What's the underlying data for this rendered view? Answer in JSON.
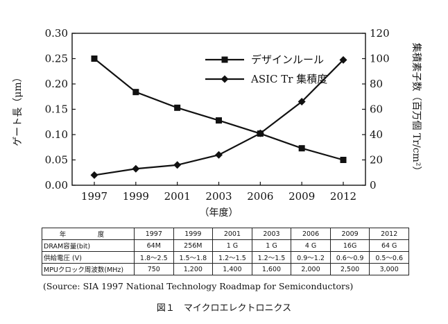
{
  "chart_data": {
    "type": "line",
    "x": [
      "1997",
      "1999",
      "2001",
      "2003",
      "2006",
      "2009",
      "2012"
    ],
    "xlabel": "（年度）",
    "ylabel_left": "ゲート長（μm）",
    "ylabel_right": "集積素子数（百万個 Tr/cm²）",
    "ylim_left": [
      0,
      0.3
    ],
    "yticks_left": [
      "0.00",
      "0.05",
      "0.10",
      "0.15",
      "0.20",
      "0.25",
      "0.30"
    ],
    "ylim_right": [
      0,
      120
    ],
    "yticks_right": [
      "0",
      "20",
      "40",
      "60",
      "80",
      "100",
      "120"
    ],
    "grid": false,
    "legend_position": "top-right",
    "series": [
      {
        "name": "デザインルール",
        "axis": "left",
        "marker": "square",
        "values": [
          0.25,
          0.184,
          0.153,
          0.128,
          0.102,
          0.073,
          0.05
        ]
      },
      {
        "name": "ASIC Tr 集積度",
        "axis": "right",
        "marker": "diamond",
        "values": [
          8,
          13,
          16,
          24,
          41,
          66,
          99
        ]
      }
    ]
  },
  "table": {
    "header_label": "年　度",
    "years": [
      "1997",
      "1999",
      "2001",
      "2003",
      "2006",
      "2009",
      "2012"
    ],
    "rows": [
      {
        "label": "DRAM容量(bit)",
        "cells": [
          "64M",
          "256M",
          "1 G",
          "1 G",
          "4 G",
          "16G",
          "64 G"
        ]
      },
      {
        "label": "供給電圧 (V)",
        "cells": [
          "1.8～2.5",
          "1.5～1.8",
          "1.2～1.5",
          "1.2～1.5",
          "0.9～1.2",
          "0.6～0.9",
          "0.5～0.6"
        ]
      },
      {
        "label": "MPUクロック周波数(MHz)",
        "cells": [
          "750",
          "1,200",
          "1,400",
          "1,600",
          "2,000",
          "2,500",
          "3,000"
        ]
      }
    ]
  },
  "source": "(Source: SIA 1997 National Technology Roadmap for Semiconductors)",
  "caption": "図１　マイクロエレクトロニクス"
}
